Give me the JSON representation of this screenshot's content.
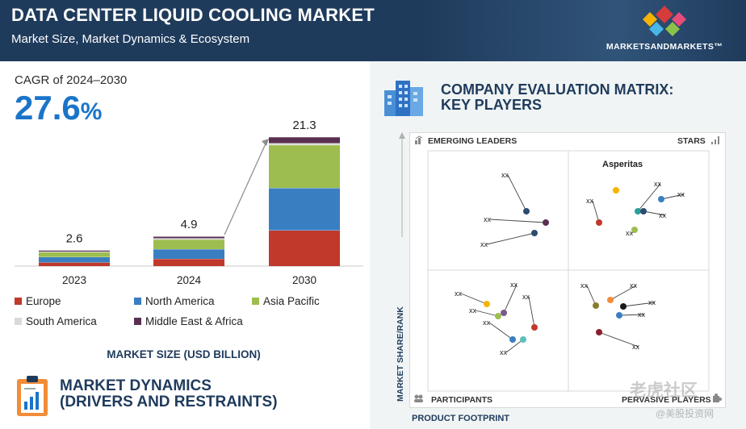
{
  "header": {
    "title": "DATA CENTER LIQUID COOLING MARKET",
    "subtitle": "Market Size, Market Dynamics & Ecosystem",
    "logo_text": "MARKETSANDMARKETS™"
  },
  "cagr": {
    "label": "CAGR of 2024–2030",
    "value": "27.6",
    "unit": "%"
  },
  "chart_data": {
    "type": "bar",
    "stacked": true,
    "title": "MARKET SIZE (USD BILLION)",
    "categories": [
      "2023",
      "2024",
      "2030"
    ],
    "totals": [
      "2.6",
      "4.9",
      "21.3"
    ],
    "total_values": [
      2.6,
      4.9,
      21.3
    ],
    "series": [
      {
        "name": "Europe",
        "color": "#c0392b",
        "values": [
          0.6,
          1.2,
          5.9
        ]
      },
      {
        "name": "North America",
        "color": "#3a7ec2",
        "values": [
          0.9,
          1.6,
          7.0
        ]
      },
      {
        "name": "Asia Pacific",
        "color": "#9dbe4e",
        "values": [
          0.8,
          1.6,
          7.1
        ]
      },
      {
        "name": "South America",
        "color": "#d9d9d9",
        "values": [
          0.1,
          0.2,
          0.3
        ]
      },
      {
        "name": "Middle East & Africa",
        "color": "#5a2f50",
        "values": [
          0.2,
          0.3,
          1.0
        ]
      }
    ],
    "ylim": [
      0,
      21.3
    ],
    "legend": "bottom"
  },
  "dynamics": {
    "title_line1": "MARKET DYNAMICS",
    "title_line2": "(DRIVERS AND RESTRAINTS)"
  },
  "matrix": {
    "title_line1": "COMPANY EVALUATION MATRIX:",
    "title_line2": "KEY PLAYERS",
    "quadrants": {
      "top_left": "EMERGING LEADERS",
      "top_right": "STARS",
      "bottom_left": "PARTICIPANTS",
      "bottom_right": "PERVASIVE PLAYERS"
    },
    "y_axis": "MARKET SHARE/RANK",
    "x_axis": "PRODUCT FOOTPRINT",
    "named_company": "Asperitas",
    "placeholder_label": "XX"
  },
  "watermark": {
    "line1": "老虎社区",
    "line2": "@美股投资网"
  }
}
